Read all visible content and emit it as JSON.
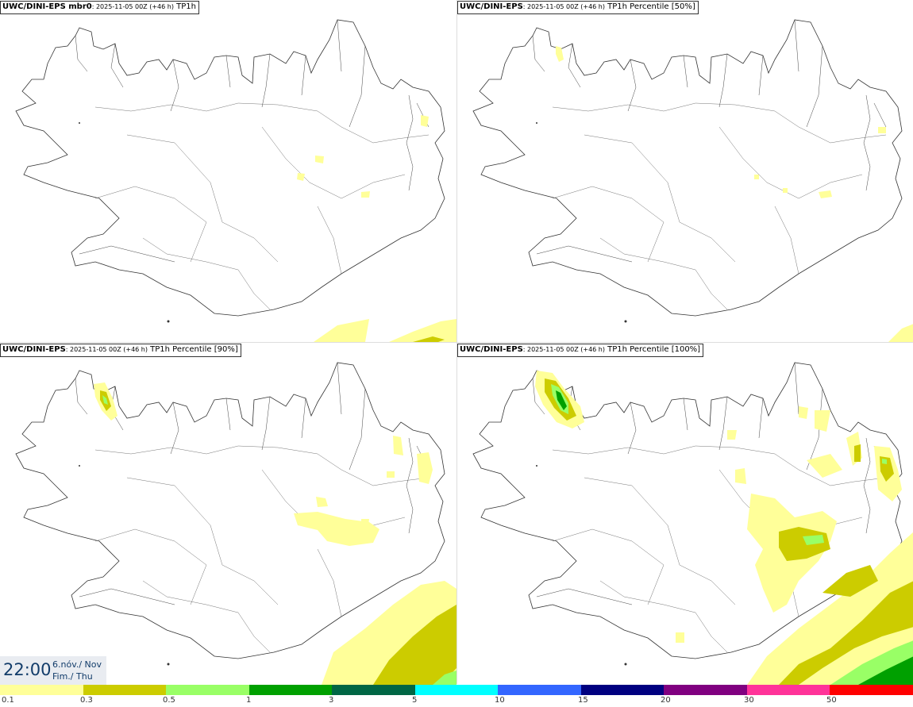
{
  "panels": [
    {
      "model": "UWC/DINI-EPS mbr0",
      "run": ": 2025-11-05 00Z (+46 h)",
      "param": " TP1h"
    },
    {
      "model": "UWC/DINI-EPS",
      "run": ": 2025-11-05 00Z (+46 h)",
      "param": " TP1h Percentile [50%]"
    },
    {
      "model": "UWC/DINI-EPS",
      "run": ": 2025-11-05 00Z (+46 h)",
      "param": " TP1h Percentile [90%]"
    },
    {
      "model": "UWC/DINI-EPS",
      "run": ": 2025-11-05 00Z (+46 h)",
      "param": " TP1h Percentile [100%]"
    }
  ],
  "valid_time": {
    "time": "22:00",
    "date_line1": "6.nóv./ Nov",
    "date_line2": "Fim./ Thu"
  },
  "legend": {
    "labels": [
      "0.1",
      "0.3",
      "0.5",
      "1",
      "3",
      "5",
      "10",
      "15",
      "20",
      "30",
      "50"
    ],
    "colors": [
      "#ffff99",
      "#cccc00",
      "#99ff66",
      "#00a000",
      "#006644",
      "#00ffff",
      "#3366ff",
      "#000080",
      "#800080",
      "#ff3399",
      "#ff0000"
    ]
  }
}
